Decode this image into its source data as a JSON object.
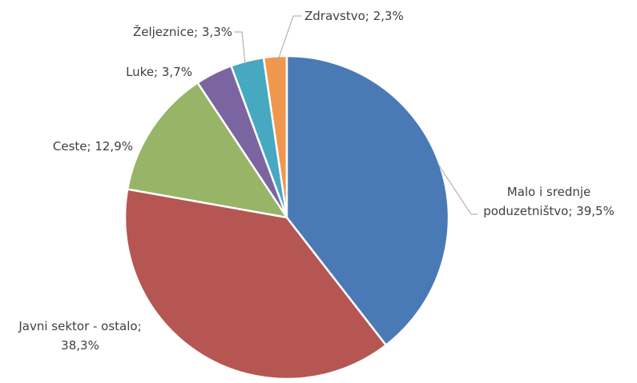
{
  "chart_data": {
    "type": "pie",
    "values": [
      39.5,
      38.3,
      12.9,
      3.7,
      3.3,
      2.3
    ],
    "value_labels": [
      "Malo i srednje poduzetništvo; 39,5%",
      "Javni sektor - ostalo; 38,3%",
      "Ceste; 12,9%",
      "Luke; 3,7%",
      "Željeznice; 3,3%",
      "Zdravstvo; 2,3%"
    ],
    "colors": [
      "#4a7ab5",
      "#b65653",
      "#98b466",
      "#7b65a0",
      "#46a8c1",
      "#f0974f"
    ]
  }
}
